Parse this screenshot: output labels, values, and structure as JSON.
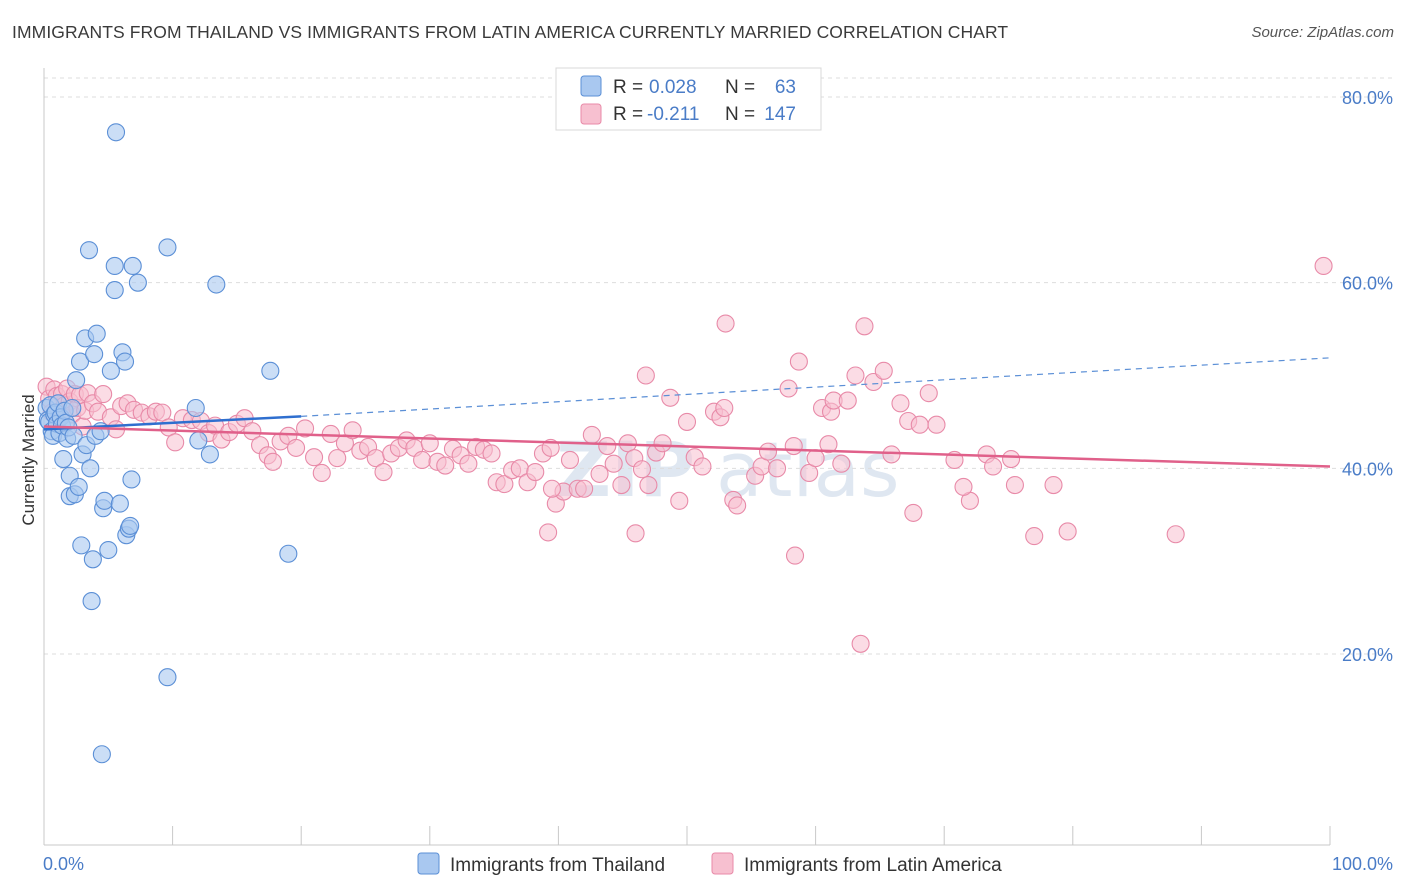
{
  "title": "IMMIGRANTS FROM THAILAND VS IMMIGRANTS FROM LATIN AMERICA CURRENTLY MARRIED CORRELATION CHART",
  "source": "Source: ZipAtlas.com",
  "watermark": {
    "part1": "ZIP",
    "part2": "atlas"
  },
  "colors": {
    "thailand_fill": "#a9c8f0",
    "thailand_stroke": "#5b8fd6",
    "thailand_line": "#2f6fcf",
    "latam_fill": "#f7c0d0",
    "latam_stroke": "#e88aa8",
    "latam_line": "#e0608a",
    "axis_label": "#4a7cc7",
    "grid": "#dddddd"
  },
  "legend_top": {
    "rows": [
      {
        "r_label": "R =",
        "r_value": "0.028",
        "n_label": "N =",
        "n_value": "63"
      },
      {
        "r_label": "R =",
        "r_value": "-0.211",
        "n_label": "N =",
        "n_value": "147"
      }
    ]
  },
  "legend_bottom": [
    "Immigrants from Thailand",
    "Immigrants from Latin America"
  ],
  "chart_data": {
    "type": "scatter",
    "title": "IMMIGRANTS FROM THAILAND VS IMMIGRANTS FROM LATIN AMERICA CURRENTLY MARRIED CORRELATION CHART",
    "xlabel": "",
    "ylabel": "Currently Married",
    "xlim": [
      0,
      100
    ],
    "ylim": [
      0,
      82
    ],
    "x_tick_labels": {
      "min": "0.0%",
      "max": "100.0%"
    },
    "y_ticks": [
      20,
      40,
      60,
      80
    ],
    "y_tick_labels": [
      "20.0%",
      "40.0%",
      "60.0%",
      "80.0%"
    ],
    "grid": true,
    "legend_position": "top-center",
    "series": [
      {
        "name": "Immigrants from Thailand",
        "R": 0.028,
        "N": 63,
        "trend": {
          "x0": 0,
          "y0": 44.2,
          "x1": 20,
          "y1": 45.6,
          "dashed_to_x": 100,
          "dashed_to_y": 51.9
        },
        "points": [
          [
            0.2,
            46.5
          ],
          [
            0.3,
            45.2
          ],
          [
            0.4,
            45.0
          ],
          [
            0.5,
            46.8
          ],
          [
            0.6,
            44.0
          ],
          [
            0.7,
            43.5
          ],
          [
            0.8,
            45.8
          ],
          [
            0.9,
            46.0
          ],
          [
            1.0,
            44.8
          ],
          [
            1.1,
            47.0
          ],
          [
            1.2,
            43.8
          ],
          [
            1.3,
            45.5
          ],
          [
            1.4,
            44.6
          ],
          [
            1.5,
            41.0
          ],
          [
            1.6,
            46.2
          ],
          [
            1.7,
            44.9
          ],
          [
            1.8,
            43.2
          ],
          [
            1.9,
            44.4
          ],
          [
            2.0,
            39.2
          ],
          [
            2.0,
            37.0
          ],
          [
            2.2,
            46.5
          ],
          [
            2.3,
            43.5
          ],
          [
            2.4,
            37.2
          ],
          [
            2.5,
            49.5
          ],
          [
            2.8,
            51.5
          ],
          [
            2.7,
            38.0
          ],
          [
            2.9,
            31.7
          ],
          [
            3.0,
            41.5
          ],
          [
            3.2,
            54.0
          ],
          [
            3.3,
            42.5
          ],
          [
            3.5,
            63.5
          ],
          [
            3.6,
            40.0
          ],
          [
            3.7,
            25.7
          ],
          [
            3.8,
            30.2
          ],
          [
            3.9,
            52.3
          ],
          [
            4.0,
            43.5
          ],
          [
            4.1,
            54.5
          ],
          [
            4.4,
            44.0
          ],
          [
            4.6,
            35.7
          ],
          [
            4.7,
            36.5
          ],
          [
            5.0,
            31.2
          ],
          [
            5.2,
            50.5
          ],
          [
            5.5,
            61.8
          ],
          [
            5.5,
            59.2
          ],
          [
            5.6,
            76.2
          ],
          [
            5.9,
            36.2
          ],
          [
            6.1,
            52.5
          ],
          [
            6.3,
            51.5
          ],
          [
            6.4,
            32.8
          ],
          [
            6.6,
            33.5
          ],
          [
            6.7,
            33.8
          ],
          [
            6.8,
            38.8
          ],
          [
            6.9,
            61.8
          ],
          [
            7.3,
            60.0
          ],
          [
            9.6,
            63.8
          ],
          [
            9.6,
            17.5
          ],
          [
            11.8,
            46.5
          ],
          [
            12.0,
            43.0
          ],
          [
            12.9,
            41.5
          ],
          [
            13.4,
            59.8
          ],
          [
            17.6,
            50.5
          ],
          [
            19.0,
            30.8
          ],
          [
            4.5,
            9.2
          ]
        ]
      },
      {
        "name": "Immigrants from Latin America",
        "R": -0.211,
        "N": 147,
        "trend": {
          "x0": 0,
          "y0": 44.5,
          "x1": 100,
          "y1": 40.2
        },
        "points": [
          [
            0.2,
            48.8
          ],
          [
            0.4,
            47.5
          ],
          [
            0.6,
            46.0
          ],
          [
            0.8,
            48.5
          ],
          [
            1.0,
            47.8
          ],
          [
            1.2,
            45.5
          ],
          [
            1.4,
            48.0
          ],
          [
            1.6,
            46.8
          ],
          [
            1.8,
            48.6
          ],
          [
            2.0,
            47.2
          ],
          [
            2.2,
            45.8
          ],
          [
            2.4,
            48.0
          ],
          [
            2.6,
            46.5
          ],
          [
            2.8,
            47.9
          ],
          [
            3.0,
            44.5
          ],
          [
            3.2,
            46.2
          ],
          [
            3.4,
            48.1
          ],
          [
            3.8,
            47.0
          ],
          [
            4.2,
            46.1
          ],
          [
            4.6,
            48.0
          ],
          [
            5.2,
            45.5
          ],
          [
            5.6,
            44.2
          ],
          [
            6.0,
            46.7
          ],
          [
            6.5,
            47.0
          ],
          [
            7.0,
            46.3
          ],
          [
            7.6,
            46.0
          ],
          [
            8.2,
            45.6
          ],
          [
            8.7,
            46.1
          ],
          [
            9.2,
            46.0
          ],
          [
            9.7,
            44.4
          ],
          [
            10.2,
            42.8
          ],
          [
            10.8,
            45.4
          ],
          [
            11.5,
            45.2
          ],
          [
            12.2,
            45.1
          ],
          [
            12.8,
            43.8
          ],
          [
            13.3,
            44.6
          ],
          [
            13.8,
            43.1
          ],
          [
            14.4,
            43.9
          ],
          [
            15.0,
            44.8
          ],
          [
            15.6,
            45.4
          ],
          [
            16.2,
            44.0
          ],
          [
            16.8,
            42.5
          ],
          [
            17.4,
            41.4
          ],
          [
            17.8,
            40.7
          ],
          [
            18.4,
            42.9
          ],
          [
            19.0,
            43.5
          ],
          [
            19.6,
            42.2
          ],
          [
            20.3,
            44.3
          ],
          [
            21.0,
            41.2
          ],
          [
            21.6,
            39.5
          ],
          [
            22.3,
            43.7
          ],
          [
            22.8,
            41.1
          ],
          [
            23.4,
            42.7
          ],
          [
            24.0,
            44.1
          ],
          [
            24.6,
            41.9
          ],
          [
            25.2,
            42.3
          ],
          [
            25.8,
            41.1
          ],
          [
            26.4,
            39.6
          ],
          [
            27.0,
            41.6
          ],
          [
            27.6,
            42.2
          ],
          [
            28.2,
            43.0
          ],
          [
            28.8,
            42.2
          ],
          [
            29.4,
            40.9
          ],
          [
            30.0,
            42.7
          ],
          [
            30.6,
            40.7
          ],
          [
            31.2,
            40.3
          ],
          [
            31.8,
            42.1
          ],
          [
            32.4,
            41.4
          ],
          [
            33.0,
            40.5
          ],
          [
            33.6,
            42.3
          ],
          [
            34.2,
            42.0
          ],
          [
            34.8,
            41.6
          ],
          [
            35.2,
            38.5
          ],
          [
            35.8,
            38.3
          ],
          [
            36.4,
            39.8
          ],
          [
            37.0,
            40.0
          ],
          [
            37.6,
            38.5
          ],
          [
            38.2,
            39.6
          ],
          [
            38.8,
            41.6
          ],
          [
            39.4,
            42.2
          ],
          [
            39.2,
            33.1
          ],
          [
            39.8,
            36.2
          ],
          [
            40.4,
            37.5
          ],
          [
            40.9,
            40.9
          ],
          [
            41.5,
            37.8
          ],
          [
            42.0,
            37.8
          ],
          [
            42.6,
            43.6
          ],
          [
            43.2,
            39.4
          ],
          [
            43.8,
            42.4
          ],
          [
            44.3,
            40.5
          ],
          [
            44.9,
            38.2
          ],
          [
            45.4,
            42.7
          ],
          [
            45.9,
            41.1
          ],
          [
            46.5,
            39.9
          ],
          [
            47.0,
            38.2
          ],
          [
            46.8,
            50.0
          ],
          [
            47.6,
            41.7
          ],
          [
            48.1,
            42.7
          ],
          [
            48.7,
            47.6
          ],
          [
            49.4,
            36.5
          ],
          [
            50.0,
            45.0
          ],
          [
            50.6,
            41.2
          ],
          [
            51.2,
            40.2
          ],
          [
            52.1,
            46.1
          ],
          [
            52.6,
            45.5
          ],
          [
            52.9,
            46.5
          ],
          [
            53.6,
            36.6
          ],
          [
            53.9,
            36.0
          ],
          [
            53.0,
            55.6
          ],
          [
            55.3,
            39.2
          ],
          [
            55.8,
            40.2
          ],
          [
            56.3,
            41.8
          ],
          [
            57.0,
            40.0
          ],
          [
            57.9,
            48.6
          ],
          [
            58.3,
            42.4
          ],
          [
            58.7,
            51.5
          ],
          [
            59.5,
            39.5
          ],
          [
            60.0,
            41.1
          ],
          [
            60.5,
            46.5
          ],
          [
            61.0,
            42.6
          ],
          [
            61.2,
            46.1
          ],
          [
            61.4,
            47.3
          ],
          [
            62.0,
            40.5
          ],
          [
            62.5,
            47.3
          ],
          [
            63.1,
            50.0
          ],
          [
            63.8,
            55.3
          ],
          [
            64.5,
            49.3
          ],
          [
            65.3,
            50.5
          ],
          [
            65.9,
            41.5
          ],
          [
            66.6,
            47.0
          ],
          [
            67.2,
            45.1
          ],
          [
            67.6,
            35.2
          ],
          [
            68.1,
            44.7
          ],
          [
            68.8,
            48.1
          ],
          [
            69.4,
            44.7
          ],
          [
            70.8,
            40.9
          ],
          [
            72.0,
            36.5
          ],
          [
            73.3,
            41.5
          ],
          [
            73.8,
            40.2
          ],
          [
            75.5,
            38.2
          ],
          [
            75.2,
            41.0
          ],
          [
            77.0,
            32.7
          ],
          [
            78.5,
            38.2
          ],
          [
            79.6,
            33.2
          ],
          [
            88.0,
            32.9
          ],
          [
            99.5,
            61.8
          ],
          [
            58.4,
            30.6
          ],
          [
            63.5,
            21.1
          ],
          [
            39.5,
            37.8
          ],
          [
            46.0,
            33.0
          ],
          [
            71.5,
            38.0
          ]
        ]
      }
    ]
  }
}
